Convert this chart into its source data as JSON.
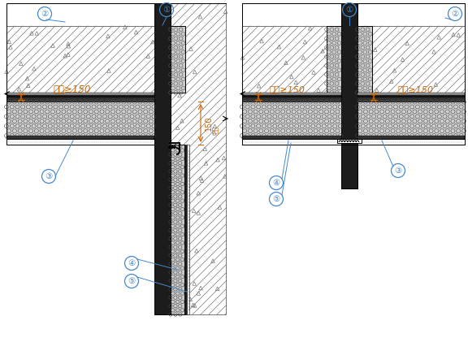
{
  "bg_color": "#ffffff",
  "line_color": "#000000",
  "dim_color": "#cc6600",
  "circle_color": "#4488cc",
  "fig_width": 5.76,
  "fig_height": 4.32,
  "dpi": 100,
  "dim_text": "翻包≥150",
  "dim_150": "150",
  "label_1": "①",
  "label_2": "②",
  "label_3": "③",
  "label_4": "④",
  "label_5": "⑤"
}
